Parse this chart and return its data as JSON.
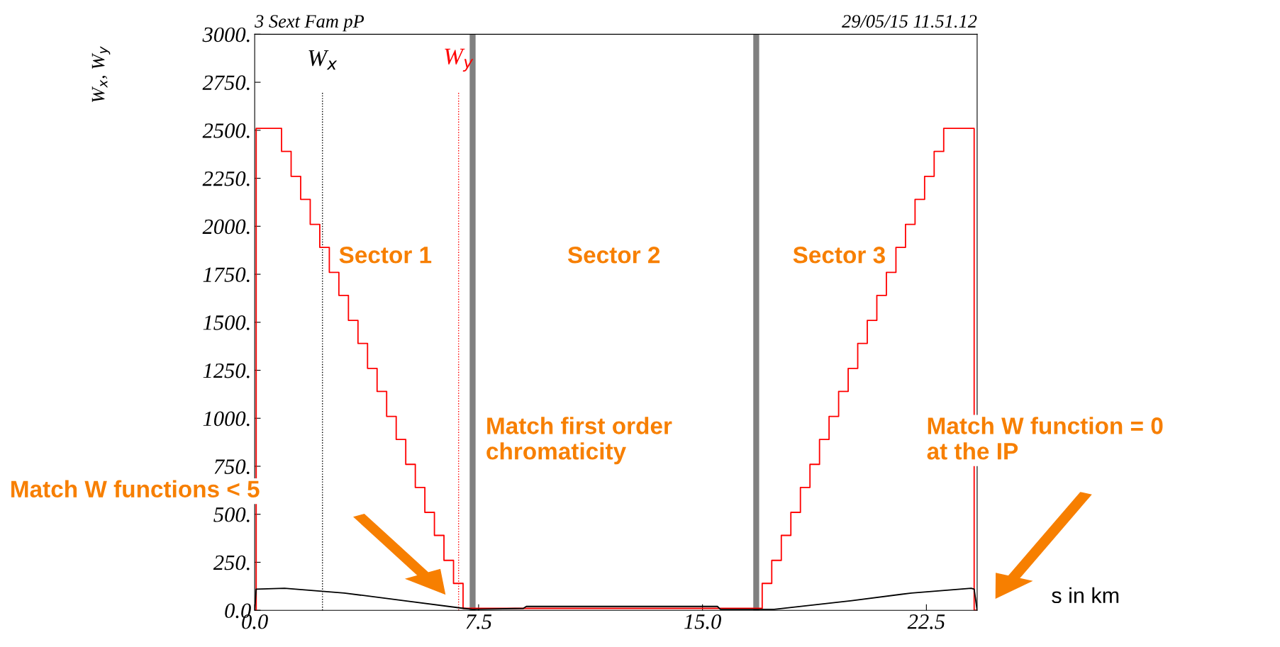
{
  "chart_data": {
    "type": "line",
    "title": "3 Sext Fam pP",
    "subtitle": "29/05/15 11.51.12",
    "xlabel": "s in km",
    "ylabel": "W$_{x}$, W$_{y}$",
    "xlim": [
      0,
      24.2
    ],
    "xticks": [
      {
        "value": 0,
        "label": "0.0"
      },
      {
        "value": 7.5,
        "label": "7.5"
      },
      {
        "value": 15,
        "label": "15.0"
      },
      {
        "value": 22.5,
        "label": "22.5"
      }
    ],
    "ylim": [
      0,
      3000
    ],
    "yticks": [
      {
        "value": 0,
        "label": "0.0"
      },
      {
        "value": 250,
        "label": "250."
      },
      {
        "value": 500,
        "label": "500."
      },
      {
        "value": 750,
        "label": "750."
      },
      {
        "value": 1000,
        "label": "1000."
      },
      {
        "value": 1250,
        "label": "1250."
      },
      {
        "value": 1500,
        "label": "1500."
      },
      {
        "value": 1750,
        "label": "1750."
      },
      {
        "value": 2000,
        "label": "2000."
      },
      {
        "value": 2250,
        "label": "2250."
      },
      {
        "value": 2500,
        "label": "2500."
      },
      {
        "value": 2750,
        "label": "2750."
      },
      {
        "value": 3000,
        "label": "3000."
      }
    ],
    "grid": false,
    "legend": false,
    "series": [
      {
        "type": "step",
        "color": "#ff0000",
        "x": [
          0,
          0.05,
          0.9,
          1.22,
          1.54,
          1.86,
          2.18,
          2.5,
          2.82,
          3.14,
          3.46,
          3.78,
          4.1,
          4.42,
          4.74,
          5.06,
          5.38,
          5.7,
          6.02,
          6.34,
          6.66,
          6.98,
          17.0,
          17.32,
          17.64,
          17.96,
          18.28,
          18.6,
          18.92,
          19.24,
          19.56,
          19.88,
          20.2,
          20.52,
          20.84,
          21.16,
          21.48,
          21.8,
          22.12,
          22.44,
          22.76,
          23.08,
          24.1,
          24.2
        ],
        "values": [
          0,
          2510,
          2390,
          2260,
          2140,
          2010,
          1890,
          1760,
          1640,
          1510,
          1390,
          1260,
          1140,
          1010,
          890,
          760,
          640,
          510,
          390,
          260,
          140,
          10,
          140,
          260,
          390,
          510,
          640,
          760,
          890,
          1010,
          1140,
          1260,
          1390,
          1510,
          1640,
          1760,
          1890,
          2010,
          2140,
          2260,
          2390,
          2510,
          0,
          0
        ]
      },
      {
        "color": "#000000",
        "x": [
          0,
          0.05,
          1.0,
          3.0,
          5.0,
          7.0,
          7.3,
          9.0,
          9.1,
          15.5,
          15.6,
          16.8,
          17.4,
          20.0,
          22.0,
          24.0,
          24.1,
          24.2
        ],
        "values": [
          0,
          110,
          115,
          90,
          50,
          10,
          5,
          10,
          20,
          20,
          5,
          5,
          5,
          50,
          90,
          115,
          110,
          0
        ]
      }
    ],
    "ref_lines": [
      {
        "axis": "x",
        "value": 2.27,
        "label": "W$_{x}$",
        "color": "#000000",
        "line_style": "dotted"
      },
      {
        "axis": "x",
        "value": 6.83,
        "label": "W$_{y}$",
        "color": "#ff0000",
        "line_style": "dotted"
      },
      {
        "axis": "x",
        "value": 7.3,
        "color": "#808080",
        "line_style": "solid"
      },
      {
        "axis": "x",
        "value": 16.8,
        "color": "#808080",
        "line_style": "solid"
      }
    ],
    "annotations": [
      "Sector 1",
      "Sector 2",
      "Sector 3",
      "Match first order\nchromaticity",
      "Match W function = 0\nat the IP",
      "Match W functions < 5"
    ]
  }
}
